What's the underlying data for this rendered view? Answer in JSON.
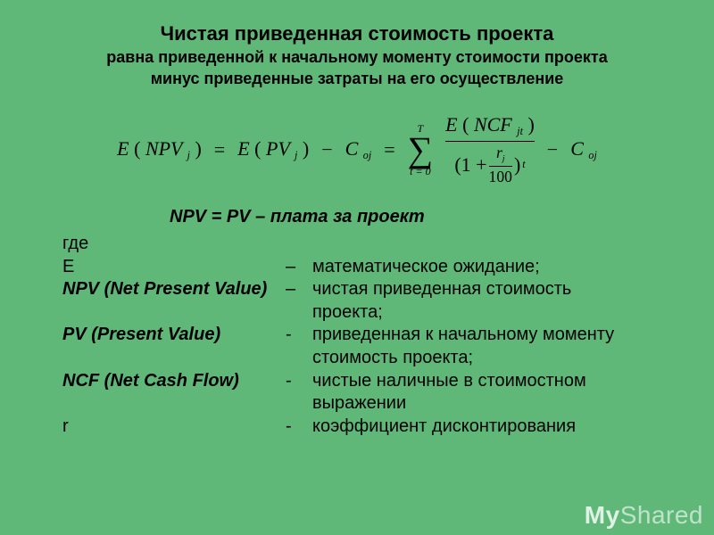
{
  "background_color": "#5fb878",
  "title": {
    "main": "Чистая приведенная стоимость проекта",
    "sub1": "равна приведенной к начальному моменту стоимости проекта",
    "sub2": "минус приведенные затраты на его осуществление"
  },
  "formula": {
    "lhs1_a": "E",
    "lhs1_b": "(",
    "lhs1_c": "NPV",
    "lhs1_sub": "j",
    "lhs1_d": ")",
    "eq1": "=",
    "mid_a": "E",
    "mid_b": "(",
    "mid_c": "PV",
    "mid_sub": "j",
    "mid_d": ")",
    "minus1": "−",
    "c1_a": "C",
    "c1_sub": "oj",
    "eq2": "=",
    "sum_top": "T",
    "sum_bottom": "t = 0",
    "sigma": "∑",
    "num_a": "E",
    "num_b": "(",
    "num_c": "NCF",
    "num_sub": "jt",
    "num_d": ")",
    "den_open": "(1 +",
    "den_frac_top": "r",
    "den_frac_top_sub": "j",
    "den_frac_bot": "100",
    "den_close": ")",
    "den_exp": "t",
    "minus2": "−",
    "c2_a": "C",
    "c2_sub": "oj"
  },
  "npv_line": "NPV = PV – плата за проект",
  "gde": "где",
  "definitions": [
    {
      "term": "E",
      "term_ital": false,
      "sep": "–",
      "desc": "математическое ожидание;"
    },
    {
      "term": "NPV (Net Present Value)",
      "term_ital": true,
      "sep": "–",
      "desc": "чистая приведенная стоимость",
      "cont": "проекта;"
    },
    {
      "term": "PV (Present Value)",
      "term_ital": true,
      "sep": "-",
      "desc": "приведенная к начальному моменту",
      "cont": "стоимость проекта;"
    },
    {
      "term": "NCF (Net Cash Flow)",
      "term_ital": true,
      "sep": "-",
      "desc": "чистые наличные в стоимостном",
      "cont": "выражении"
    },
    {
      "term": " r",
      "term_ital": false,
      "sep": "-",
      "desc": "коэффициент дисконтирования"
    }
  ],
  "watermark": {
    "my": "My",
    "shared": "Shared"
  }
}
